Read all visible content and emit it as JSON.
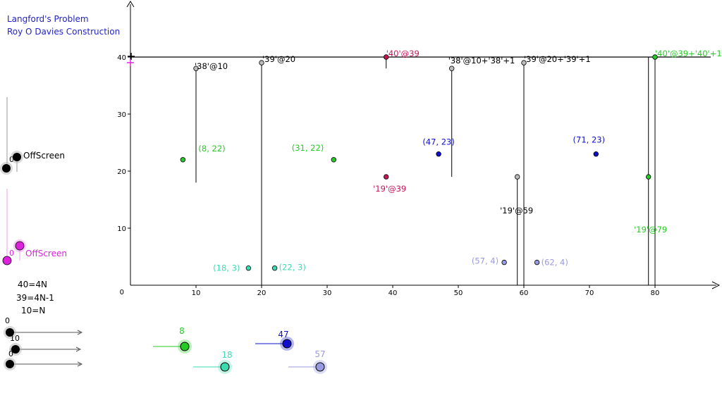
{
  "header": {
    "title": "Langford's Problem",
    "subtitle": "Roy O Davies Construction"
  },
  "colors": {
    "black": "#000000",
    "green": "#22cc22",
    "blue": "#1010cc",
    "cyan": "#3dd9b0",
    "lavender": "#9a9ae0",
    "crimson": "#cc1155",
    "magenta": "#cc22cc",
    "title": "#2222cc",
    "gray": "#bbbbbb"
  },
  "chart_data": {
    "type": "scatter",
    "x_ticks": [
      "10",
      "20",
      "30",
      "40",
      "50",
      "60",
      "70",
      "80"
    ],
    "y_ticks": [
      "10",
      "20",
      "30",
      "40"
    ],
    "origin_label": "0",
    "xlim": [
      0,
      90
    ],
    "ylim": [
      0,
      40
    ],
    "points": [
      {
        "x": 8,
        "y": 22,
        "label": "(8, 22)",
        "color": "green"
      },
      {
        "x": 31,
        "y": 22,
        "label": "(31, 22)",
        "color": "green"
      },
      {
        "x": 47,
        "y": 23,
        "label": "(47, 23)",
        "color": "blue"
      },
      {
        "x": 71,
        "y": 23,
        "label": "(71, 23)",
        "color": "blue"
      },
      {
        "x": 18,
        "y": 3,
        "label": "(18, 3)",
        "color": "cyan"
      },
      {
        "x": 22,
        "y": 3,
        "label": "(22, 3)",
        "color": "cyan"
      },
      {
        "x": 57,
        "y": 4,
        "label": "(57, 4)",
        "color": "lavender"
      },
      {
        "x": 62,
        "y": 4,
        "label": "(62, 4)",
        "color": "lavender"
      },
      {
        "x": 39,
        "y": 19,
        "label": "'19'@39",
        "color": "crimson"
      },
      {
        "x": 59,
        "y": 19,
        "label": "'19'@59",
        "color": "gray"
      },
      {
        "x": 79,
        "y": 19,
        "label": "'19'@79",
        "color": "green"
      },
      {
        "x": 10,
        "y": 38,
        "label": "'38'@10",
        "color": "gray"
      },
      {
        "x": 20,
        "y": 39,
        "label": "'39'@20",
        "color": "gray"
      },
      {
        "x": 39,
        "y": 40,
        "label": "'40'@39",
        "color": "crimson"
      },
      {
        "x": 49,
        "y": 38,
        "label": "'38'@10+'38'+1",
        "color": "gray"
      },
      {
        "x": 60,
        "y": 39,
        "label": "'39'@20+'39'+1",
        "color": "gray"
      },
      {
        "x": 80,
        "y": 40,
        "label": "'40'@39+'40'+1",
        "color": "green"
      }
    ],
    "vertical_segments": [
      {
        "x": 10,
        "y1": 18,
        "y2": 38
      },
      {
        "x": 20,
        "y1": 0,
        "y2": 39
      },
      {
        "x": 39,
        "y1": 38,
        "y2": 40
      },
      {
        "x": 49,
        "y1": 19,
        "y2": 38
      },
      {
        "x": 59,
        "y1": 0,
        "y2": 19
      },
      {
        "x": 60,
        "y1": 0,
        "y2": 39
      },
      {
        "x": 79,
        "y1": 0,
        "y2": 40
      },
      {
        "x": 80,
        "y1": 0,
        "y2": 40
      }
    ],
    "horizontal_line_y": 40
  },
  "offscreen_black": {
    "label": "OffScreen",
    "value": "0"
  },
  "offscreen_magenta": {
    "label": "OffScreen",
    "value": "0"
  },
  "equations": [
    "40=4N",
    "39=4N-1",
    "10=N"
  ],
  "left_sliders": [
    {
      "value": "0"
    },
    {
      "value": "10"
    },
    {
      "value": "0"
    }
  ],
  "bottom_sliders": [
    {
      "value": "8",
      "color": "green"
    },
    {
      "value": "47",
      "color": "blue"
    },
    {
      "value": "18",
      "color": "cyan"
    },
    {
      "value": "57",
      "color": "lavender"
    }
  ]
}
